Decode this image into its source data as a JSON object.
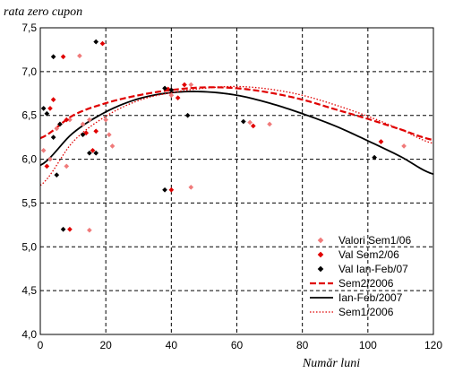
{
  "chart_data": {
    "type": "scatter",
    "ylabel": "rata zero cupon",
    "xlabel": "Număr luni",
    "xlim": [
      0,
      120
    ],
    "ylim": [
      4.0,
      7.5
    ],
    "xticks": [
      "0",
      "20",
      "40",
      "60",
      "80",
      "100",
      "120"
    ],
    "yticks": [
      "4,0",
      "4,5",
      "5,0",
      "5,5",
      "6,0",
      "6,5",
      "7,0",
      "7,5"
    ],
    "grid": true,
    "legend_position": "bottom-right",
    "series": [
      {
        "name": "Valori Sem1/06",
        "kind": "points",
        "marker": "diamond",
        "color": "#f07a7a",
        "points": [
          [
            1,
            6.1
          ],
          [
            3,
            6.0
          ],
          [
            5,
            6.35
          ],
          [
            8,
            5.92
          ],
          [
            9,
            6.45
          ],
          [
            12,
            7.18
          ],
          [
            13,
            6.4
          ],
          [
            15,
            6.45
          ],
          [
            15,
            5.19
          ],
          [
            20,
            6.45
          ],
          [
            21,
            6.28
          ],
          [
            22,
            6.15
          ],
          [
            40,
            6.73
          ],
          [
            46,
            6.85
          ],
          [
            46,
            5.68
          ],
          [
            64,
            6.42
          ],
          [
            70,
            6.4
          ],
          [
            104,
            6.2
          ],
          [
            111,
            6.15
          ]
        ]
      },
      {
        "name": "Val Sem2/06",
        "kind": "points",
        "marker": "diamond",
        "color": "#e00000",
        "points": [
          [
            2,
            5.92
          ],
          [
            3,
            6.58
          ],
          [
            4,
            6.68
          ],
          [
            6,
            6.4
          ],
          [
            7,
            7.17
          ],
          [
            8,
            6.45
          ],
          [
            9,
            5.2
          ],
          [
            14,
            6.3
          ],
          [
            16,
            6.1
          ],
          [
            17,
            6.32
          ],
          [
            19,
            7.32
          ],
          [
            39,
            6.8
          ],
          [
            40,
            5.65
          ],
          [
            42,
            6.7
          ],
          [
            44,
            6.85
          ],
          [
            65,
            6.38
          ],
          [
            104,
            6.2
          ]
        ]
      },
      {
        "name": "Val Ian-Feb/07",
        "kind": "points",
        "marker": "diamond",
        "color": "#000000",
        "points": [
          [
            1,
            6.58
          ],
          [
            2,
            6.52
          ],
          [
            4,
            6.25
          ],
          [
            4,
            7.17
          ],
          [
            5,
            5.82
          ],
          [
            6,
            6.4
          ],
          [
            7,
            5.2
          ],
          [
            13,
            6.28
          ],
          [
            15,
            6.07
          ],
          [
            17,
            6.07
          ],
          [
            17,
            7.34
          ],
          [
            38,
            6.81
          ],
          [
            38,
            5.65
          ],
          [
            40,
            6.79
          ],
          [
            45,
            6.5
          ],
          [
            62,
            6.43
          ],
          [
            102,
            6.02
          ]
        ]
      },
      {
        "name": "Sem2/2006",
        "kind": "line",
        "style": "dashed",
        "color": "#e00000",
        "x": [
          0,
          10,
          20,
          30,
          40,
          50,
          60,
          70,
          80,
          90,
          100,
          110,
          120
        ],
        "y": [
          6.24,
          6.5,
          6.64,
          6.73,
          6.79,
          6.82,
          6.81,
          6.76,
          6.68,
          6.57,
          6.46,
          6.34,
          6.22
        ]
      },
      {
        "name": "Ian-Feb/2007",
        "kind": "line",
        "style": "solid",
        "color": "#000000",
        "x": [
          0,
          10,
          20,
          30,
          40,
          50,
          60,
          70,
          80,
          90,
          100,
          110,
          120
        ],
        "y": [
          5.93,
          6.3,
          6.54,
          6.69,
          6.76,
          6.77,
          6.73,
          6.64,
          6.52,
          6.38,
          6.21,
          6.03,
          5.83
        ]
      },
      {
        "name": "Sem1/2006",
        "kind": "line",
        "style": "dotted",
        "color": "#e00000",
        "x": [
          0,
          10,
          20,
          30,
          40,
          50,
          60,
          70,
          80,
          90,
          100,
          110,
          120
        ],
        "y": [
          5.7,
          6.2,
          6.49,
          6.67,
          6.76,
          6.81,
          6.83,
          6.8,
          6.73,
          6.62,
          6.49,
          6.34,
          6.18
        ]
      }
    ]
  }
}
